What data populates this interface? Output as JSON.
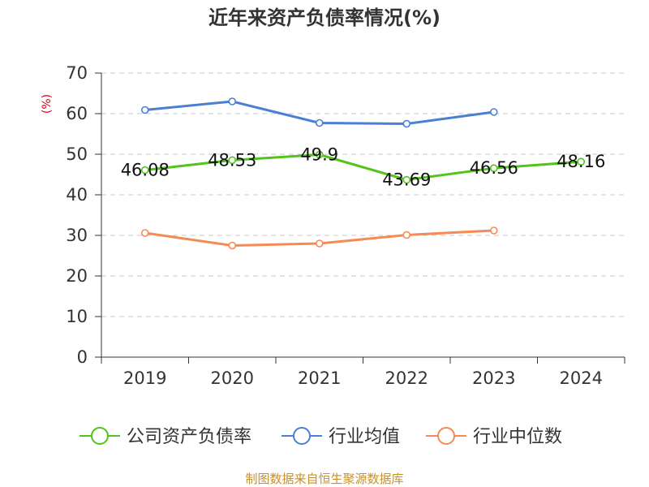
{
  "chart_data": {
    "type": "line",
    "title": "近年来资产负债率情况(%)",
    "ylabel": "(%)",
    "categories": [
      "2019",
      "2020",
      "2021",
      "2022",
      "2023",
      "2024"
    ],
    "ylim": [
      0,
      70
    ],
    "yticks": [
      "0",
      "10",
      "20",
      "30",
      "40",
      "50",
      "60",
      "70"
    ],
    "grid": true,
    "legend_position": "bottom",
    "series": [
      {
        "name": "公司资产负债率",
        "color": "#52c41a",
        "values": [
          46.08,
          48.53,
          49.9,
          43.69,
          46.56,
          48.16
        ],
        "labels": [
          "46.08",
          "48.53",
          "49.9",
          "43.69",
          "46.56",
          "48.16"
        ]
      },
      {
        "name": "行业均值",
        "color": "#4a7fd4",
        "values": [
          60.9,
          63.0,
          57.7,
          57.5,
          60.4,
          null
        ]
      },
      {
        "name": "行业中位数",
        "color": "#f58a54",
        "values": [
          30.6,
          27.5,
          28.0,
          30.1,
          31.2,
          null
        ]
      }
    ],
    "source": "制图数据来自恒生聚源数据库"
  }
}
